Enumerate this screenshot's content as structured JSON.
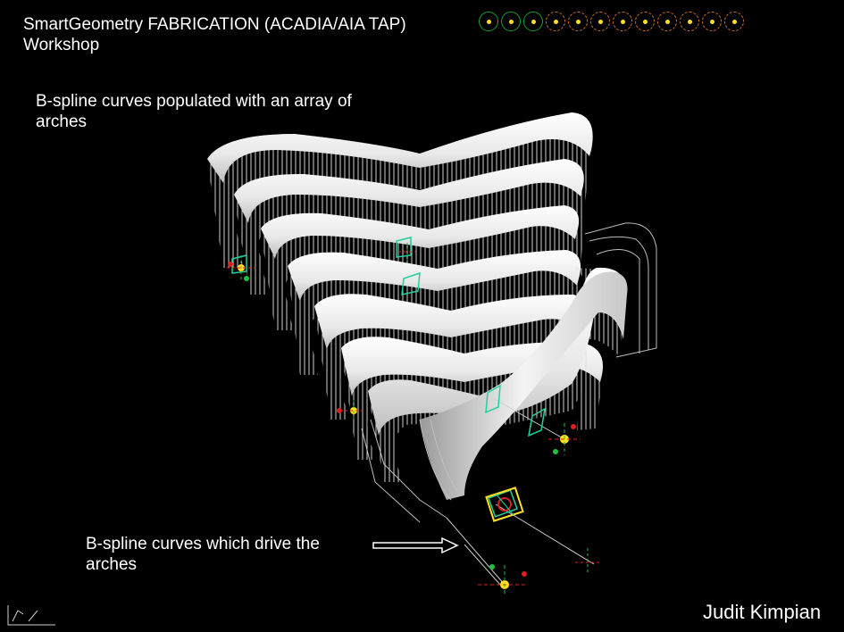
{
  "slide": {
    "title": "SmartGeometry FABRICATION (ACADIA/AIA TAP)\nWorkshop",
    "caption_top": "B-spline curves populated with an array of\narches",
    "caption_bottom": "B-spline curves which drive the\narches",
    "author": "Judit Kimpian"
  },
  "nav_dots": [
    {
      "name": "nav-dot-1",
      "style": "green"
    },
    {
      "name": "nav-dot-2",
      "style": "green"
    },
    {
      "name": "nav-dot-3",
      "style": "green"
    },
    {
      "name": "nav-dot-4",
      "style": "orange"
    },
    {
      "name": "nav-dot-5",
      "style": "orange"
    },
    {
      "name": "nav-dot-6",
      "style": "orange"
    },
    {
      "name": "nav-dot-7",
      "style": "orange"
    },
    {
      "name": "nav-dot-8",
      "style": "orange"
    },
    {
      "name": "nav-dot-9",
      "style": "orange"
    },
    {
      "name": "nav-dot-10",
      "style": "orange"
    },
    {
      "name": "nav-dot-11",
      "style": "orange"
    },
    {
      "name": "nav-dot-12",
      "style": "orange"
    }
  ],
  "colors": {
    "background": "#000000",
    "text": "#ffffff",
    "arch": "#f2f2f2",
    "control_green": "#20c040",
    "control_red": "#e02020",
    "control_yellow": "#ffe020",
    "frame_cyan": "#20d0a0"
  },
  "icons": {
    "arrow": "right-arrow-icon",
    "ucs": "ucs-axis-icon"
  }
}
